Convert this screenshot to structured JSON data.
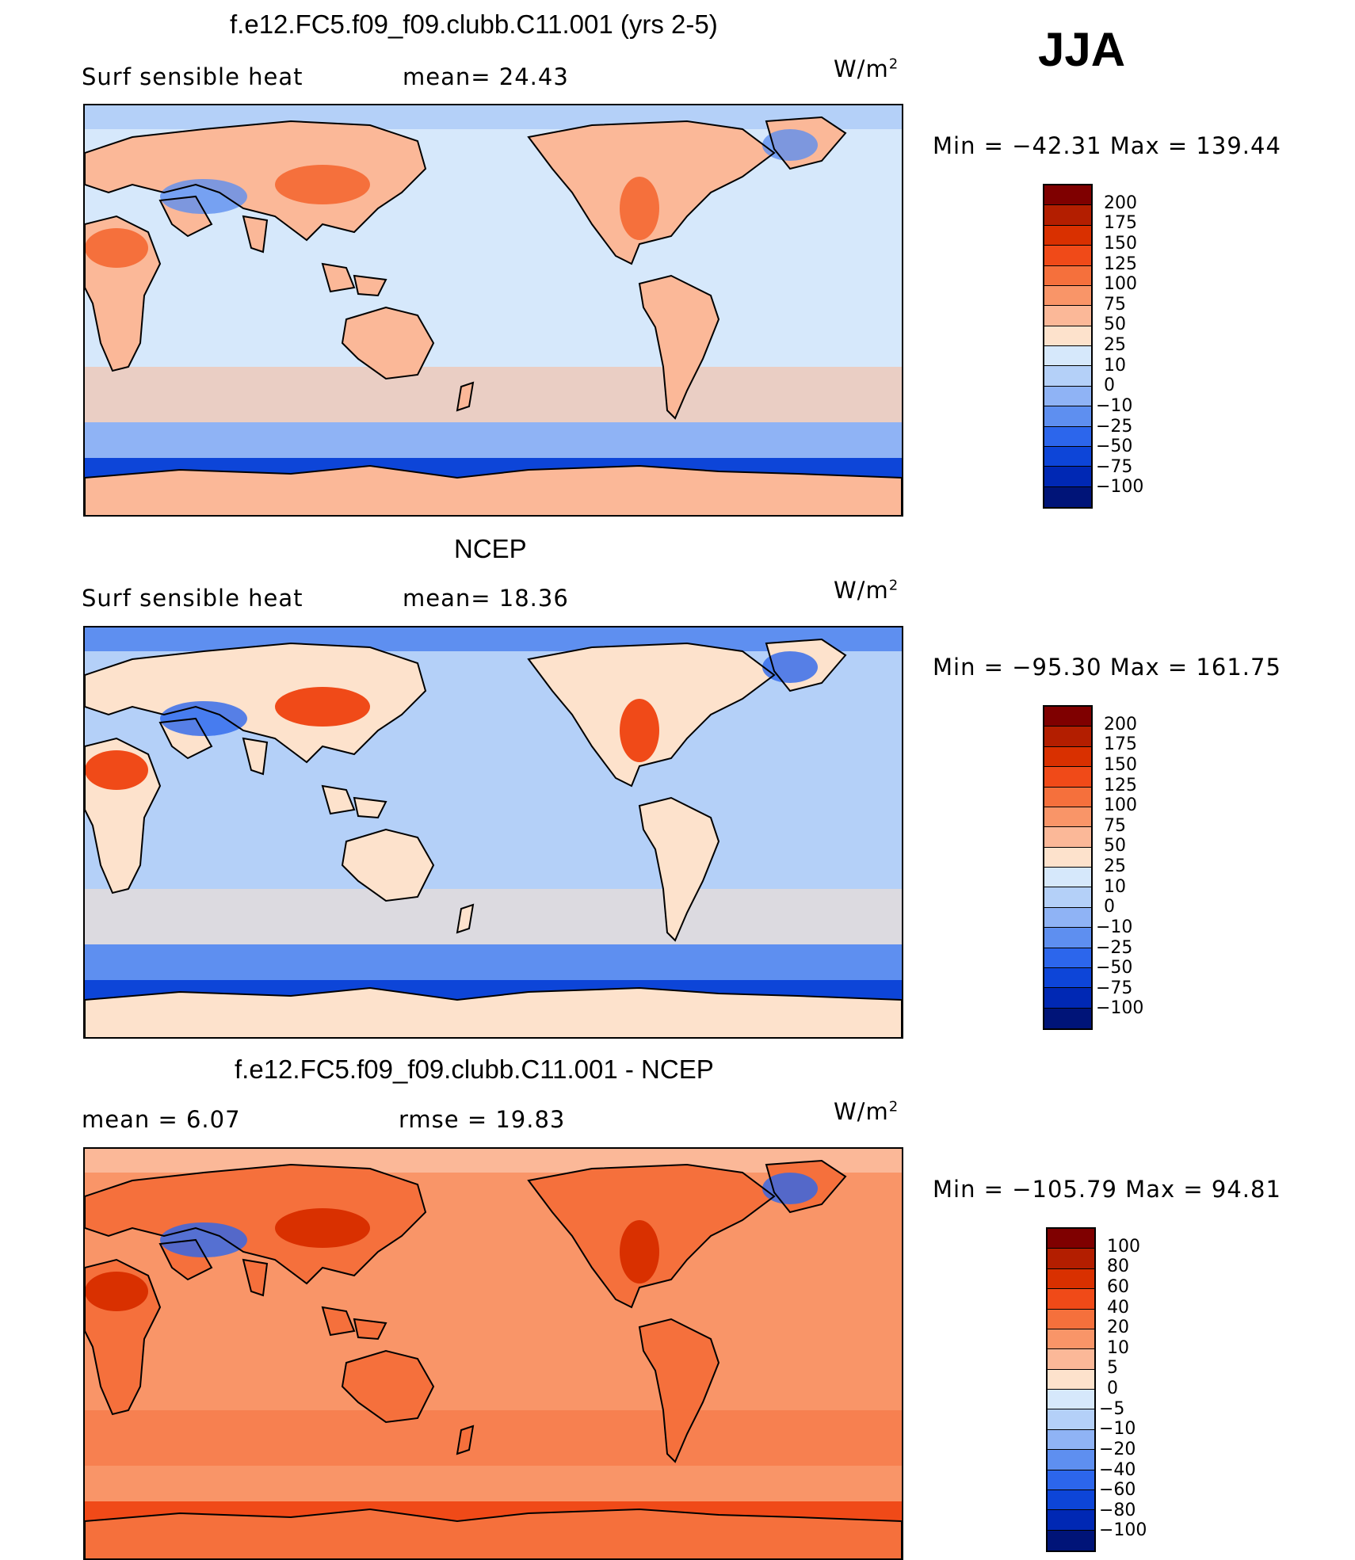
{
  "season": "JJA",
  "panels": [
    {
      "title": "f.e12.FC5.f09_f09.clubb.C11.001 (yrs 2-5)",
      "left_label": "Surf  sensible  heat",
      "middle_label": "mean=   24.43",
      "units_base": "W/m",
      "units_exp": "2",
      "minmax": "Min  =  −42.31  Max  =  139.44",
      "colorbar": {
        "labels": [
          "200",
          "175",
          "150",
          "125",
          "100",
          "75",
          "50",
          "25",
          "10",
          "0",
          "−10",
          "−25",
          "−50",
          "−75",
          "−100"
        ],
        "colors": [
          "#7f0000",
          "#b31e00",
          "#d93000",
          "#f04a18",
          "#f5703c",
          "#f99568",
          "#fbb898",
          "#fde2cc",
          "#d6e8fb",
          "#b4d0f8",
          "#8fb3f5",
          "#5e8ff0",
          "#2c66ec",
          "#0d45d8",
          "#0028b4",
          "#001478"
        ]
      },
      "map": {
        "ocean": "#d6e8fb",
        "land": "#fbb898",
        "south_band_1": "#8fb3f5",
        "south_band_2": "#0d45d8",
        "north_band": "#b4d0f8",
        "warm_spot": "#f5703c",
        "cold_spot": "#5e8ff0"
      }
    },
    {
      "title": "NCEP",
      "left_label": "Surf  sensible  heat",
      "middle_label": "mean=   18.36",
      "units_base": "W/m",
      "units_exp": "2",
      "minmax": "Min  =  −95.30  Max  =  161.75",
      "colorbar": {
        "labels": [
          "200",
          "175",
          "150",
          "125",
          "100",
          "75",
          "50",
          "25",
          "10",
          "0",
          "−10",
          "−25",
          "−50",
          "−75",
          "−100"
        ],
        "colors": [
          "#7f0000",
          "#b31e00",
          "#d93000",
          "#f04a18",
          "#f5703c",
          "#f99568",
          "#fbb898",
          "#fde2cc",
          "#d6e8fb",
          "#b4d0f8",
          "#8fb3f5",
          "#5e8ff0",
          "#2c66ec",
          "#0d45d8",
          "#0028b4",
          "#001478"
        ]
      },
      "map": {
        "ocean": "#b4d0f8",
        "land": "#fde2cc",
        "south_band_1": "#5e8ff0",
        "south_band_2": "#0d45d8",
        "north_band": "#5e8ff0",
        "warm_spot": "#f04a18",
        "cold_spot": "#2c66ec"
      }
    },
    {
      "title": "f.e12.FC5.f09_f09.clubb.C11.001 - NCEP",
      "left_label": "mean  =      6.07",
      "middle_label": "rmse  =    19.83",
      "units_base": "W/m",
      "units_exp": "2",
      "minmax": "Min  =  −105.79  Max  =    94.81",
      "colorbar": {
        "labels": [
          "100",
          "80",
          "60",
          "40",
          "20",
          "10",
          "5",
          "0",
          "−5",
          "−10",
          "−20",
          "−40",
          "−60",
          "−80",
          "−100"
        ],
        "colors": [
          "#7f0000",
          "#b31e00",
          "#d93000",
          "#f04a18",
          "#f5703c",
          "#f99568",
          "#fbb898",
          "#fde2cc",
          "#d6e8fb",
          "#b4d0f8",
          "#8fb3f5",
          "#5e8ff0",
          "#2c66ec",
          "#0d45d8",
          "#0028b4",
          "#001478"
        ]
      },
      "map": {
        "ocean": "#f99568",
        "land": "#f5703c",
        "south_band_1": "#f99568",
        "south_band_2": "#f04a18",
        "north_band": "#fbb898",
        "warm_spot": "#d93000",
        "cold_spot": "#2c66ec"
      }
    }
  ]
}
